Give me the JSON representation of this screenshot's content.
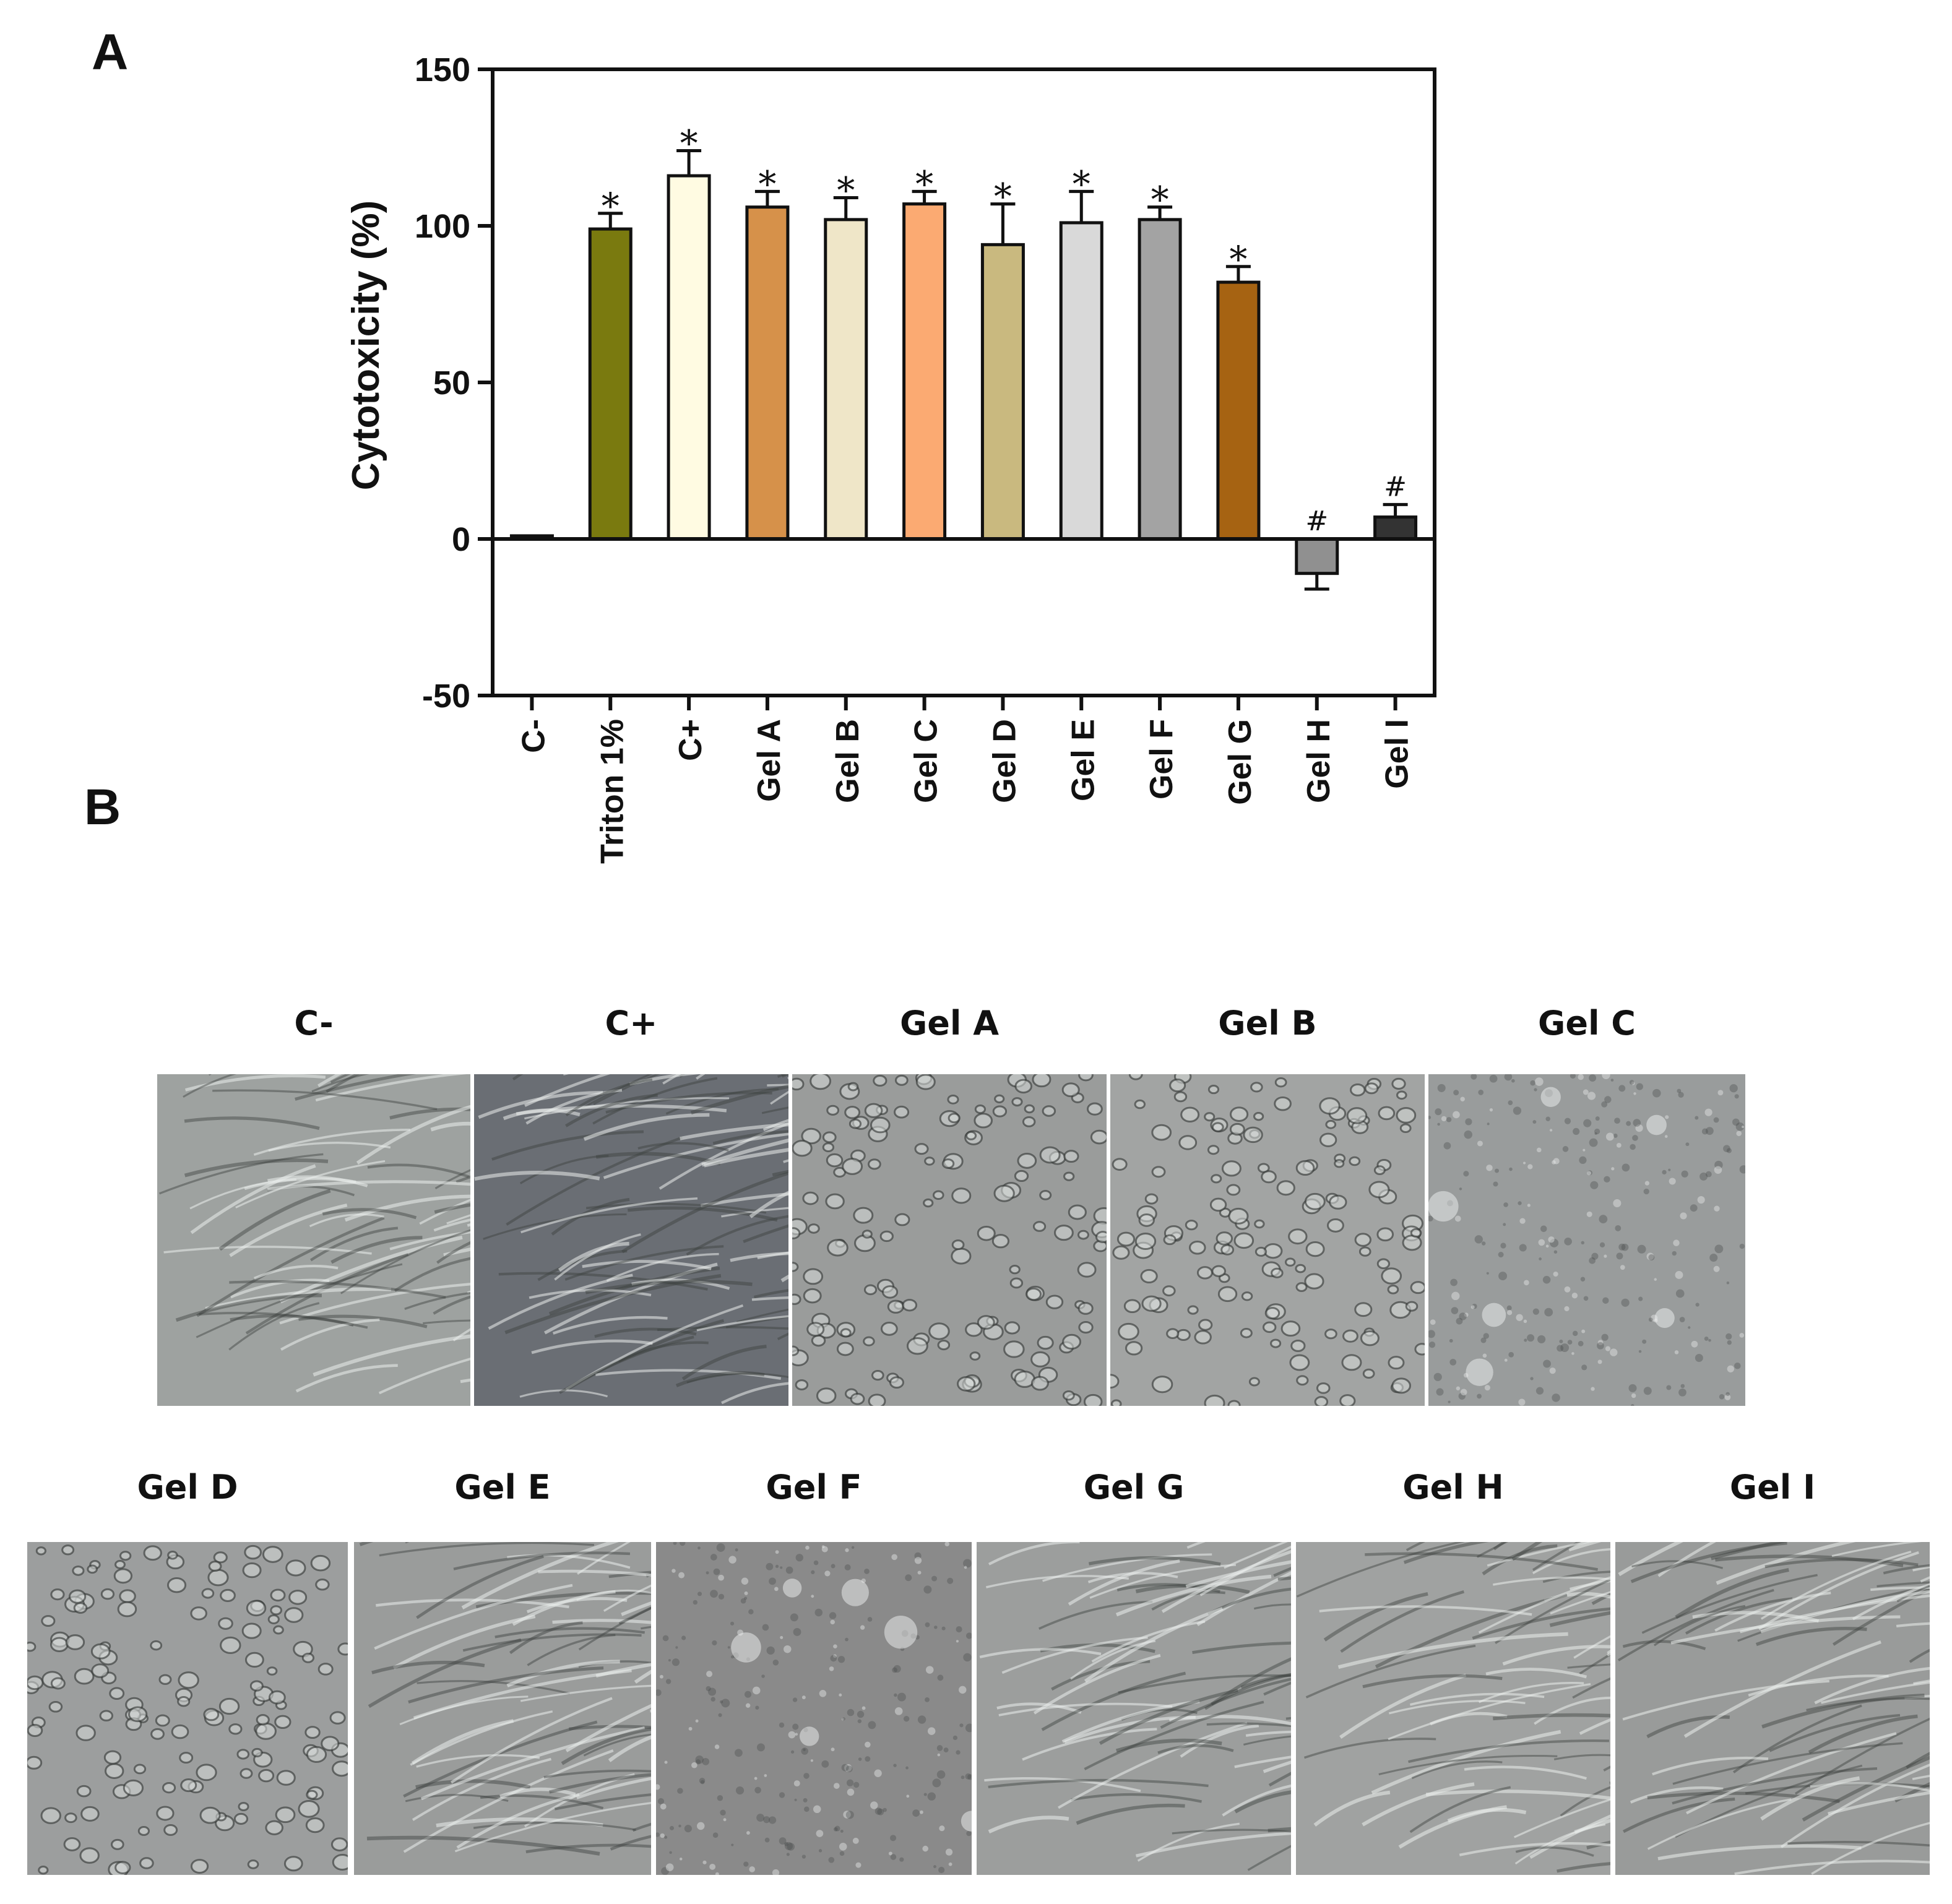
{
  "panels": {
    "a_label": "A",
    "b_label": "B"
  },
  "chart_data": {
    "type": "bar",
    "title": "",
    "xlabel": "",
    "ylabel": "Cytotoxicity (%)",
    "ylim": [
      -50,
      150
    ],
    "yticks": [
      "150",
      "100",
      "50",
      "0",
      "-50"
    ],
    "categories": [
      "C-",
      "Triton 1%",
      "C+",
      "Gel A",
      "Gel B",
      "Gel C",
      "Gel D",
      "Gel E",
      "Gel F",
      "Gel G",
      "Gel H",
      "Gel I"
    ],
    "values": [
      1,
      99,
      116,
      106,
      102,
      107,
      94,
      101,
      102,
      82,
      -11,
      7
    ],
    "errors": [
      0,
      5,
      8,
      5,
      7,
      4,
      13,
      10,
      4,
      5,
      5,
      4
    ],
    "significance": [
      "",
      "*",
      "*",
      "*",
      "*",
      "*",
      "*",
      "*",
      "*",
      "*",
      "#",
      "#"
    ],
    "colors": [
      "#707070",
      "#7a7a0f",
      "#fffbe2",
      "#d6914a",
      "#efe6c8",
      "#fbaa72",
      "#c9b97f",
      "#d9d9d9",
      "#a3a3a3",
      "#a66312",
      "#909090",
      "#333333"
    ],
    "grid": false,
    "legend": "none"
  },
  "micrographs": {
    "row1": [
      {
        "label": "C-",
        "tone": "#9ea2a0",
        "texture": "fibroblast"
      },
      {
        "label": "C+",
        "tone": "#6a6e74",
        "texture": "dense"
      },
      {
        "label": "Gel A",
        "tone": "#9a9c9b",
        "texture": "rounded"
      },
      {
        "label": "Gel B",
        "tone": "#a2a4a3",
        "texture": "rounded"
      },
      {
        "label": "Gel C",
        "tone": "#999c9c",
        "texture": "granular"
      }
    ],
    "row2": [
      {
        "label": "Gel D",
        "tone": "#9c9e9e",
        "texture": "rounded"
      },
      {
        "label": "Gel E",
        "tone": "#9a9c9b",
        "texture": "fibroblast"
      },
      {
        "label": "Gel F",
        "tone": "#8a8a8a",
        "texture": "granular"
      },
      {
        "label": "Gel G",
        "tone": "#9c9e9d",
        "texture": "fibroblast"
      },
      {
        "label": "Gel H",
        "tone": "#a0a2a1",
        "texture": "fibroblast"
      },
      {
        "label": "Gel I",
        "tone": "#999b9a",
        "texture": "fibroblast"
      }
    ]
  }
}
